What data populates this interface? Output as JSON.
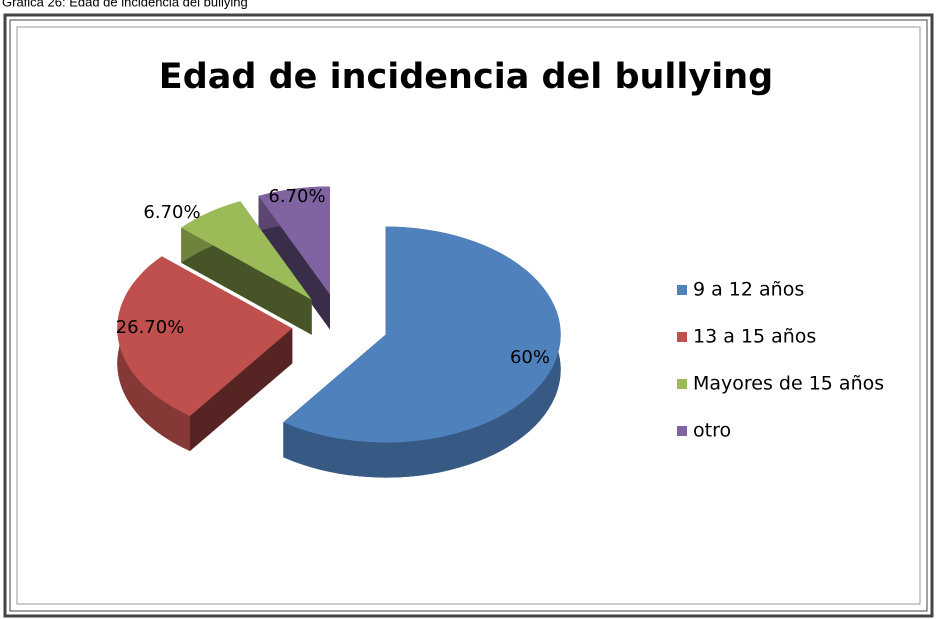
{
  "caption": "Gráfica 26: Edad de incidencia del bullying",
  "chart_data": {
    "type": "pie3d",
    "title": "Edad de incidencia del bullying",
    "categories": [
      "9 a 12 años",
      "13 a 15 años",
      "Mayores de 15 años",
      "otro"
    ],
    "values": [
      60,
      26.7,
      6.7,
      6.7
    ],
    "value_labels": [
      "60%",
      "26.70%",
      "6.70%",
      "6.70%"
    ],
    "colors": [
      "#4f81bd",
      "#c0504d",
      "#9bbb59",
      "#8064a2"
    ],
    "legend": "right"
  }
}
